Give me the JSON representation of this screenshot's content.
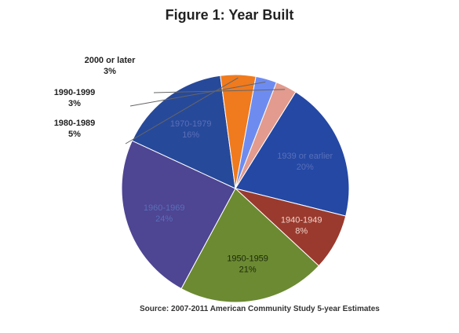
{
  "chart_data": {
    "type": "pie",
    "title": "Figure 1: Year Built",
    "source": "Source: 2007-2011 American Community Study 5-year Estimates",
    "slices": [
      {
        "label": "1939 or earlier",
        "value": 20,
        "value_label": "20%",
        "color": "#2448a4"
      },
      {
        "label": "1940-1949",
        "value": 8,
        "value_label": "8%",
        "color": "#9a3a2e"
      },
      {
        "label": "1950-1959",
        "value": 21,
        "value_label": "21%",
        "color": "#6c8a32"
      },
      {
        "label": "1960-1969",
        "value": 24,
        "value_label": "24%",
        "color": "#4e4593"
      },
      {
        "label": "1970-1979",
        "value": 16,
        "value_label": "16%",
        "color": "#27499a"
      },
      {
        "label": "1980-1989",
        "value": 5,
        "value_label": "5%",
        "color": "#f07a1e"
      },
      {
        "label": "1990-1999",
        "value": 3,
        "value_label": "3%",
        "color": "#6e8cf0"
      },
      {
        "label": "2000 or later",
        "value": 3,
        "value_label": "3%",
        "color": "#e29b8e"
      }
    ]
  }
}
